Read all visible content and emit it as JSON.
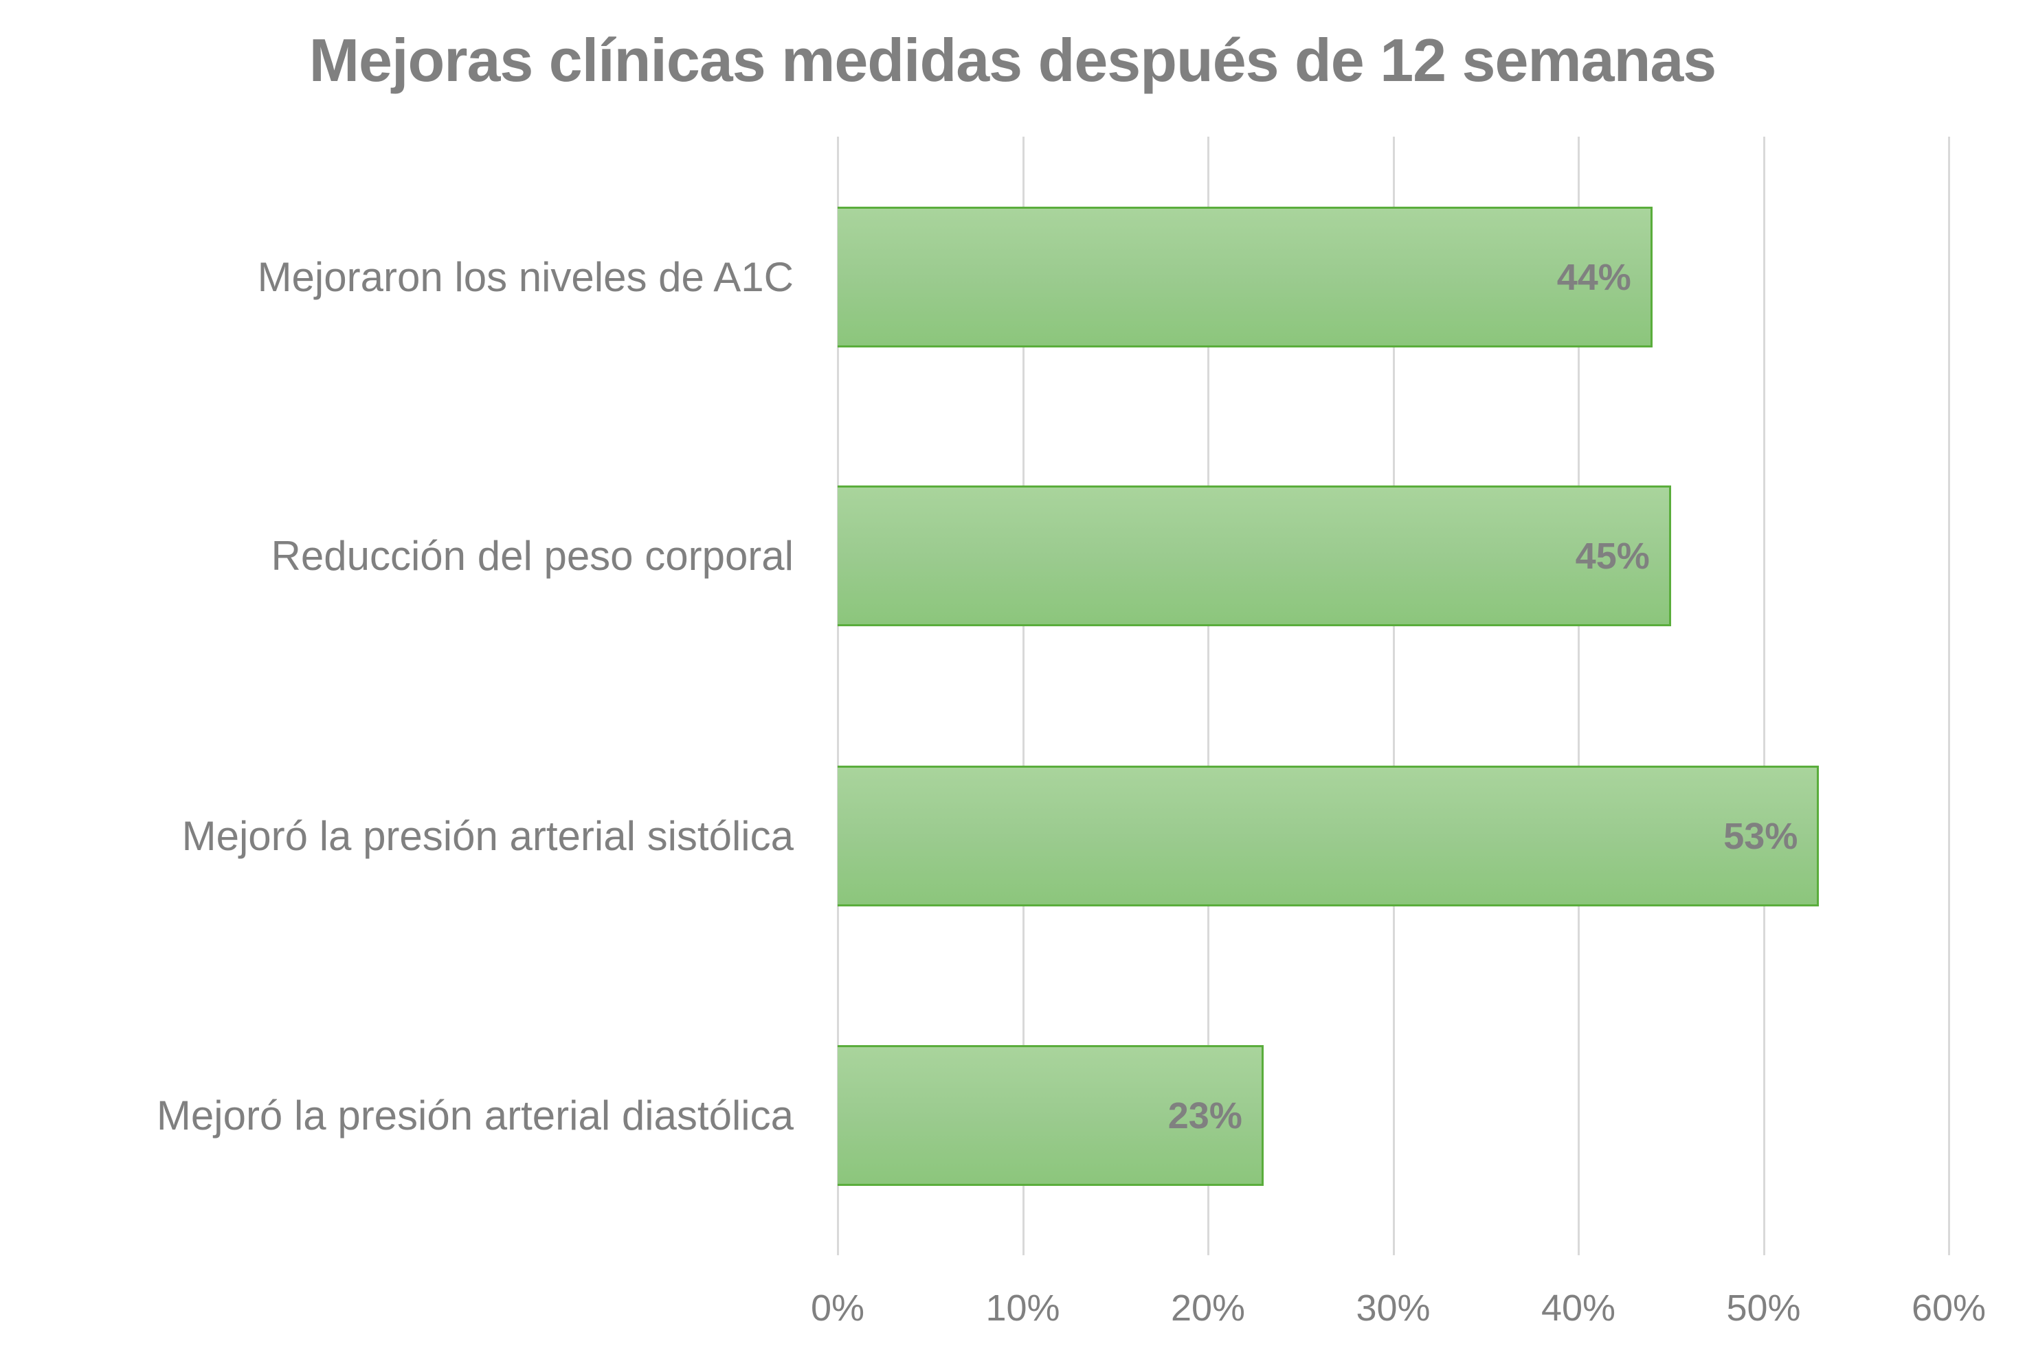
{
  "chart_data": {
    "type": "bar",
    "orientation": "horizontal",
    "title": "Mejoras clínicas medidas después de 12 semanas",
    "categories": [
      "Mejoraron los niveles de A1C",
      "Reducción del peso corporal",
      "Mejoró la presión arterial sistólica",
      "Mejoró la presión arterial diastólica"
    ],
    "values": [
      44,
      45,
      53,
      23
    ],
    "value_labels": [
      "44%",
      "45%",
      "53%",
      "23%"
    ],
    "xlabel": "",
    "ylabel": "",
    "xlim": [
      0,
      60
    ],
    "x_ticks": [
      "0%",
      "10%",
      "20%",
      "30%",
      "40%",
      "50%",
      "60%"
    ],
    "grid": "vertical",
    "legend": "none"
  },
  "colors": {
    "text": "#808080",
    "bar_fill_top": "#a9d49c",
    "bar_fill_bottom": "#8cc67c",
    "bar_border": "#5aad3c",
    "gridline": "#d9d9d9"
  }
}
